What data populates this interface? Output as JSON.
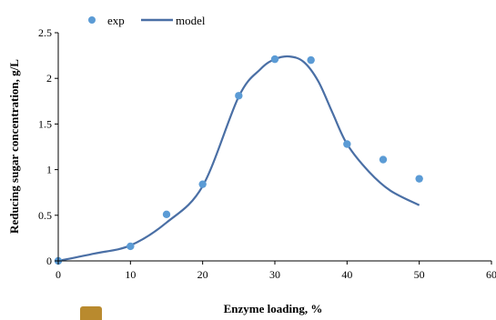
{
  "chart_data": {
    "type": "scatter",
    "xlabel": "Enzyme loading, %",
    "ylabel": "Reducing sugar concentration, g/L",
    "xlim": [
      0,
      60
    ],
    "ylim": [
      0,
      2.5
    ],
    "x_ticks": [
      "0",
      "10",
      "20",
      "30",
      "40",
      "50",
      "60"
    ],
    "y_ticks": [
      "0",
      "0.5",
      "1",
      "1.5",
      "2",
      "2.5"
    ],
    "grid": false,
    "legend": "top-left",
    "series": [
      {
        "name": "exp",
        "kind": "scatter",
        "color": "#5b9bd5",
        "x": [
          0,
          10,
          15,
          20,
          25,
          30,
          35,
          40,
          45,
          50
        ],
        "y": [
          0,
          0.16,
          0.51,
          0.84,
          1.81,
          2.21,
          2.2,
          1.28,
          1.11,
          0.9
        ]
      },
      {
        "name": "model",
        "kind": "line",
        "color": "#4a6fa5",
        "x": [
          0,
          5,
          10,
          15,
          20,
          25,
          28,
          30,
          32,
          34,
          36,
          38,
          40,
          43,
          46,
          50
        ],
        "y": [
          0,
          0.08,
          0.17,
          0.42,
          0.82,
          1.8,
          2.1,
          2.21,
          2.24,
          2.18,
          1.97,
          1.62,
          1.28,
          0.98,
          0.77,
          0.61
        ]
      }
    ]
  }
}
